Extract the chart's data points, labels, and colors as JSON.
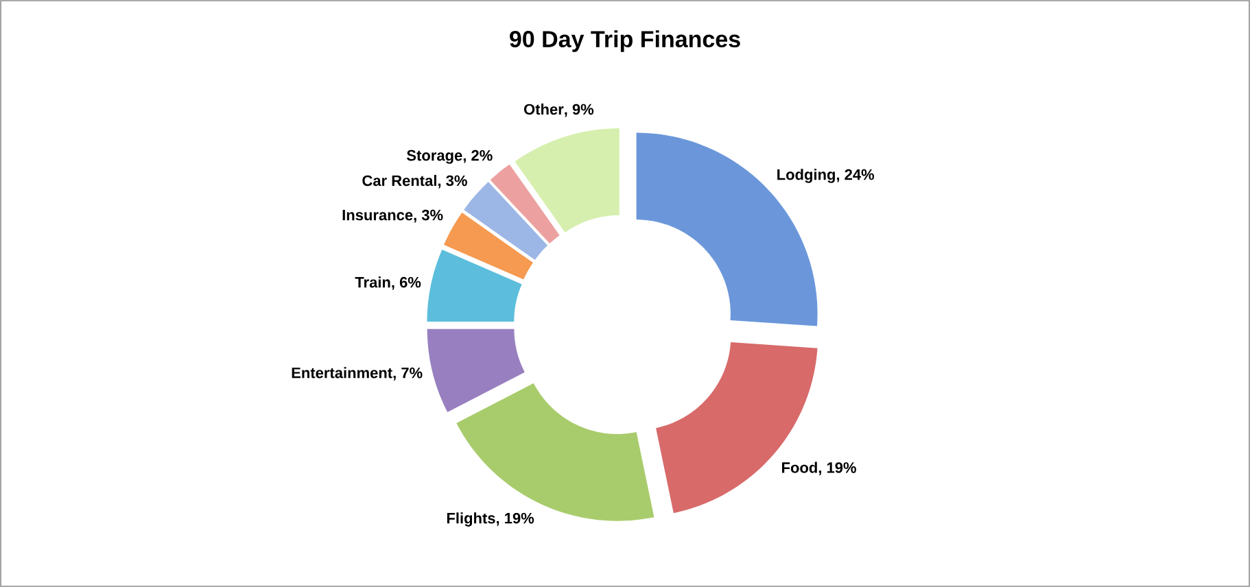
{
  "chart_data": {
    "type": "donut",
    "title": "90 Day Trip Finances",
    "categories": [
      "Lodging",
      "Food",
      "Flights",
      "Entertainment",
      "Train",
      "Insurance",
      "Car Rental",
      "Storage",
      "Other"
    ],
    "values": [
      24,
      19,
      19,
      7,
      6,
      3,
      3,
      2,
      9
    ],
    "value_labels": [
      ", 24%",
      ", 19%",
      ", 19%",
      ", 7%",
      ", 6%",
      ", 3%",
      ", 3%",
      ", 2%",
      ", 9%"
    ],
    "colors": [
      "#6b97da",
      "#d86a6a",
      "#a8cc6c",
      "#9880c0",
      "#5cbedc",
      "#f59a50",
      "#9cb6e6",
      "#eca0a0",
      "#d6efae"
    ]
  }
}
